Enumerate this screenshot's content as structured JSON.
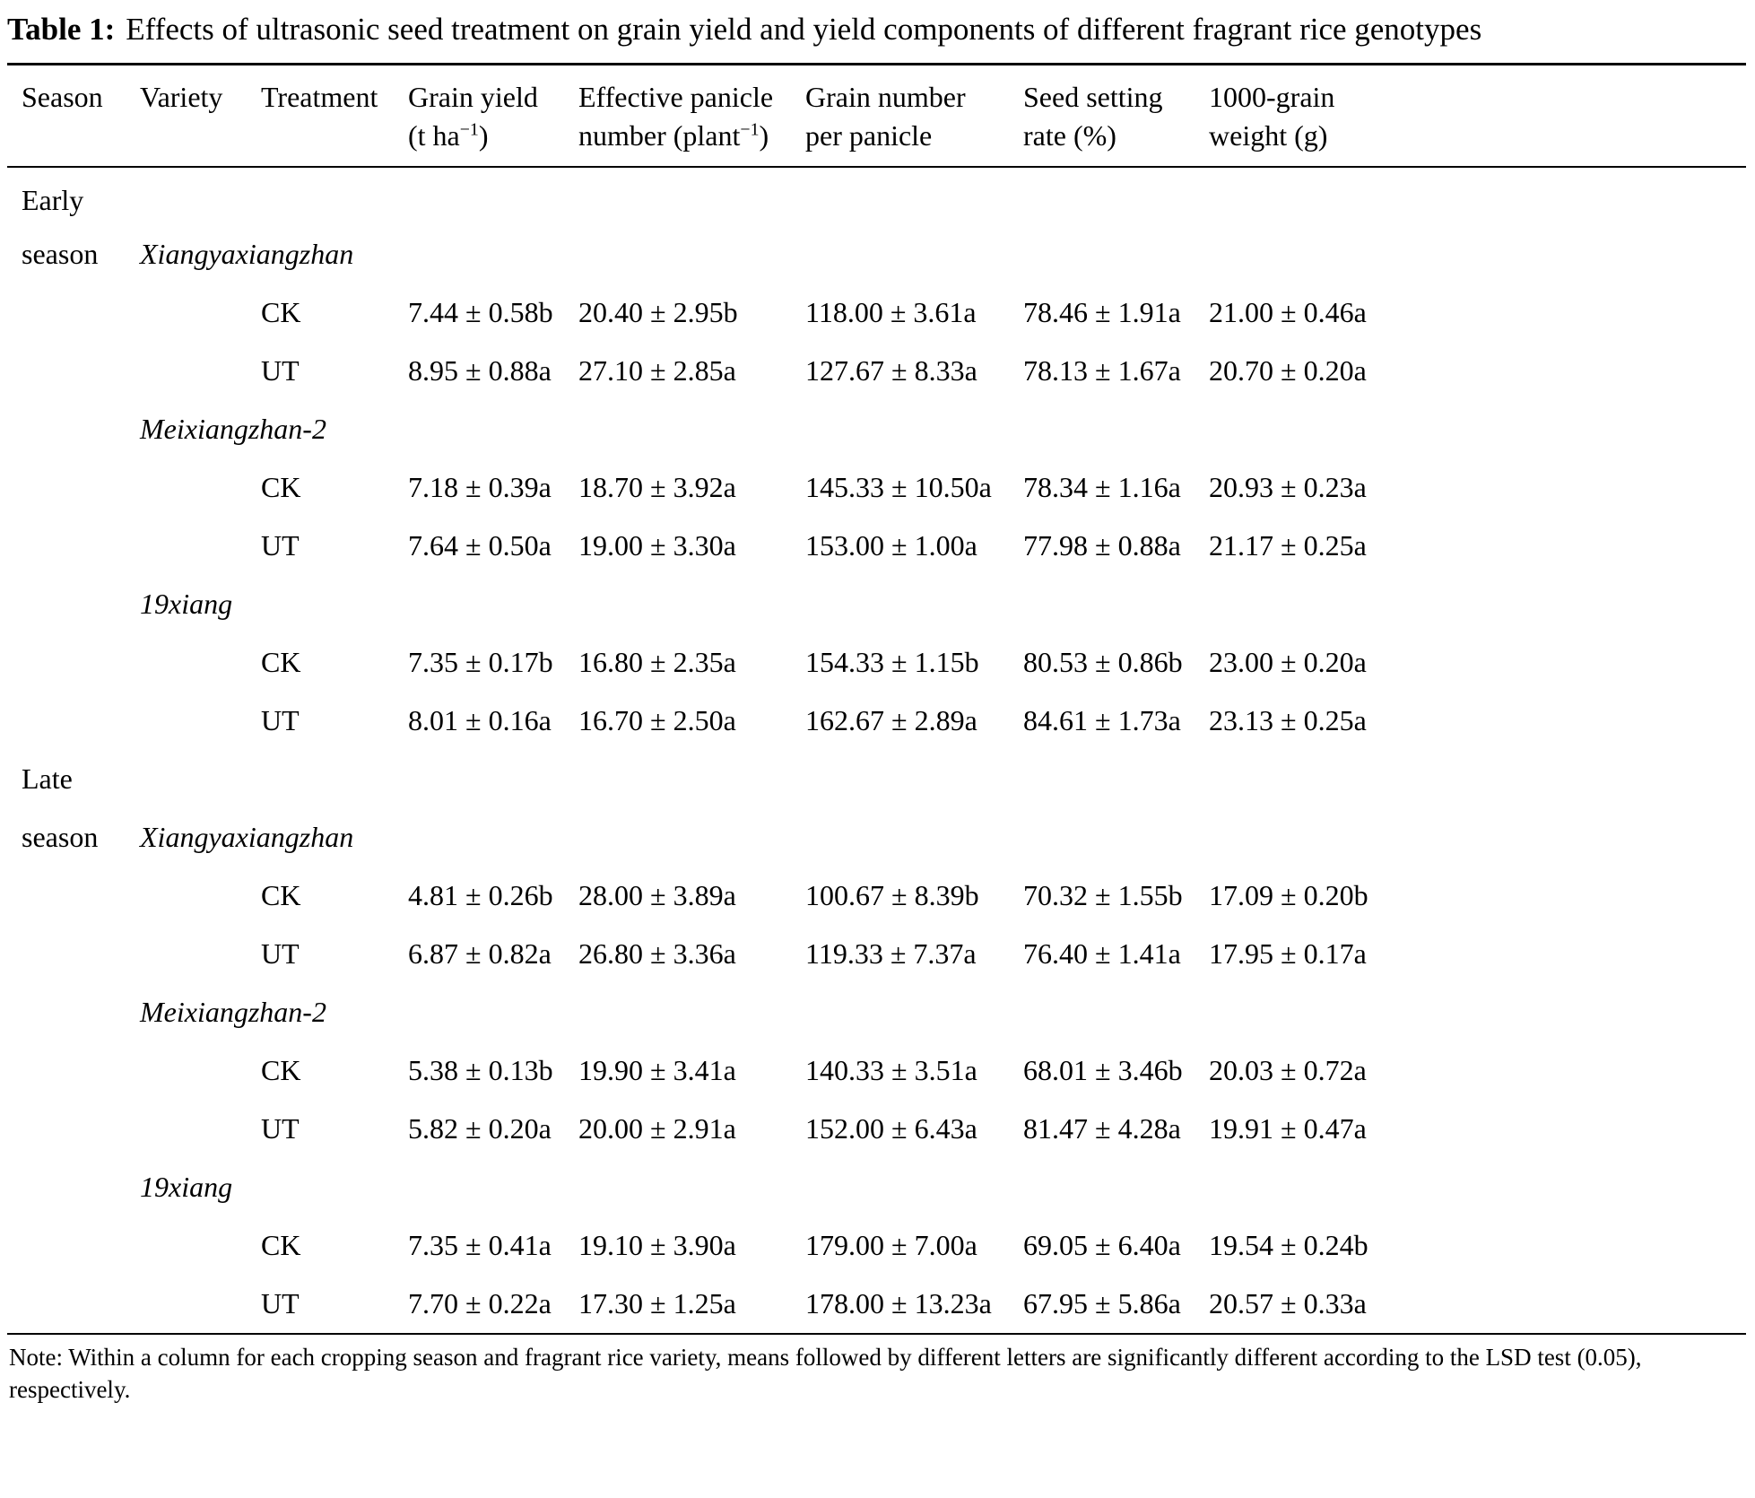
{
  "title": {
    "label": "Table 1:",
    "text": "Effects of ultrasonic seed treatment on grain yield and yield components of different fragrant rice genotypes"
  },
  "table": {
    "columns": [
      {
        "line1": "Season"
      },
      {
        "line1": "Variety"
      },
      {
        "line1": "Treatment"
      },
      {
        "line1": "Grain yield",
        "line2_pre": "(t ha",
        "line2_sup": "−1",
        "line2_post": ")"
      },
      {
        "line1": "Effective panicle",
        "line2_pre": "number (plant",
        "line2_sup": "−1",
        "line2_post": ")"
      },
      {
        "line1": "Grain number",
        "line2_pre": "per panicle"
      },
      {
        "line1": "Seed setting",
        "line2_pre": "rate (%)"
      },
      {
        "line1": "1000-grain",
        "line2_pre": "weight (g)"
      }
    ],
    "rows": [
      {
        "type": "season",
        "label": "Early"
      },
      {
        "type": "variety",
        "season_word": "season",
        "variety": "Xiangyaxiangzhan"
      },
      {
        "type": "data",
        "treatment": "CK",
        "values": [
          "7.44 ± 0.58b",
          "20.40 ± 2.95b",
          "118.00 ± 3.61a",
          "78.46 ± 1.91a",
          "21.00 ± 0.46a"
        ]
      },
      {
        "type": "data",
        "treatment": "UT",
        "values": [
          "8.95 ± 0.88a",
          "27.10 ± 2.85a",
          "127.67 ± 8.33a",
          "78.13 ± 1.67a",
          "20.70 ± 0.20a"
        ]
      },
      {
        "type": "variety",
        "season_word": "",
        "variety": "Meixiangzhan-2"
      },
      {
        "type": "data",
        "treatment": "CK",
        "values": [
          "7.18 ± 0.39a",
          "18.70 ± 3.92a",
          "145.33 ± 10.50a",
          "78.34 ± 1.16a",
          "20.93 ± 0.23a"
        ]
      },
      {
        "type": "data",
        "treatment": "UT",
        "values": [
          "7.64 ± 0.50a",
          "19.00 ± 3.30a",
          "153.00 ± 1.00a",
          "77.98 ± 0.88a",
          "21.17 ± 0.25a"
        ]
      },
      {
        "type": "variety",
        "season_word": "",
        "variety": "19xiang"
      },
      {
        "type": "data",
        "treatment": "CK",
        "values": [
          "7.35 ± 0.17b",
          "16.80 ± 2.35a",
          "154.33 ± 1.15b",
          "80.53 ± 0.86b",
          "23.00 ± 0.20a"
        ]
      },
      {
        "type": "data",
        "treatment": "UT",
        "values": [
          "8.01 ± 0.16a",
          "16.70 ± 2.50a",
          "162.67 ± 2.89a",
          "84.61 ± 1.73a",
          "23.13 ± 0.25a"
        ]
      },
      {
        "type": "season",
        "label": "Late"
      },
      {
        "type": "variety",
        "season_word": "season",
        "variety": "Xiangyaxiangzhan"
      },
      {
        "type": "data",
        "treatment": "CK",
        "values": [
          "4.81 ± 0.26b",
          "28.00 ± 3.89a",
          "100.67 ± 8.39b",
          "70.32 ± 1.55b",
          "17.09 ± 0.20b"
        ]
      },
      {
        "type": "data",
        "treatment": "UT",
        "values": [
          "6.87 ± 0.82a",
          "26.80 ± 3.36a",
          "119.33 ± 7.37a",
          "76.40 ± 1.41a",
          "17.95 ± 0.17a"
        ]
      },
      {
        "type": "variety",
        "season_word": "",
        "variety": "Meixiangzhan-2"
      },
      {
        "type": "data",
        "treatment": "CK",
        "values": [
          "5.38 ± 0.13b",
          "19.90 ± 3.41a",
          "140.33 ± 3.51a",
          "68.01 ± 3.46b",
          "20.03 ± 0.72a"
        ]
      },
      {
        "type": "data",
        "treatment": "UT",
        "values": [
          "5.82 ± 0.20a",
          "20.00 ± 2.91a",
          "152.00 ± 6.43a",
          "81.47 ± 4.28a",
          "19.91 ± 0.47a"
        ]
      },
      {
        "type": "variety",
        "season_word": "",
        "variety": "19xiang"
      },
      {
        "type": "data",
        "treatment": "CK",
        "values": [
          "7.35 ± 0.41a",
          "19.10 ± 3.90a",
          "179.00 ± 7.00a",
          "69.05 ± 6.40a",
          "19.54 ± 0.24b"
        ]
      },
      {
        "type": "data",
        "treatment": "UT",
        "values": [
          "7.70 ± 0.22a",
          "17.30 ± 1.25a",
          "178.00 ± 13.23a",
          "67.95 ± 5.86a",
          "20.57 ± 0.33a"
        ]
      }
    ]
  },
  "note": {
    "text": "Note: Within a column for each cropping season and fragrant rice variety, means followed by different letters are significantly different according to the LSD test (0.05), respectively."
  }
}
